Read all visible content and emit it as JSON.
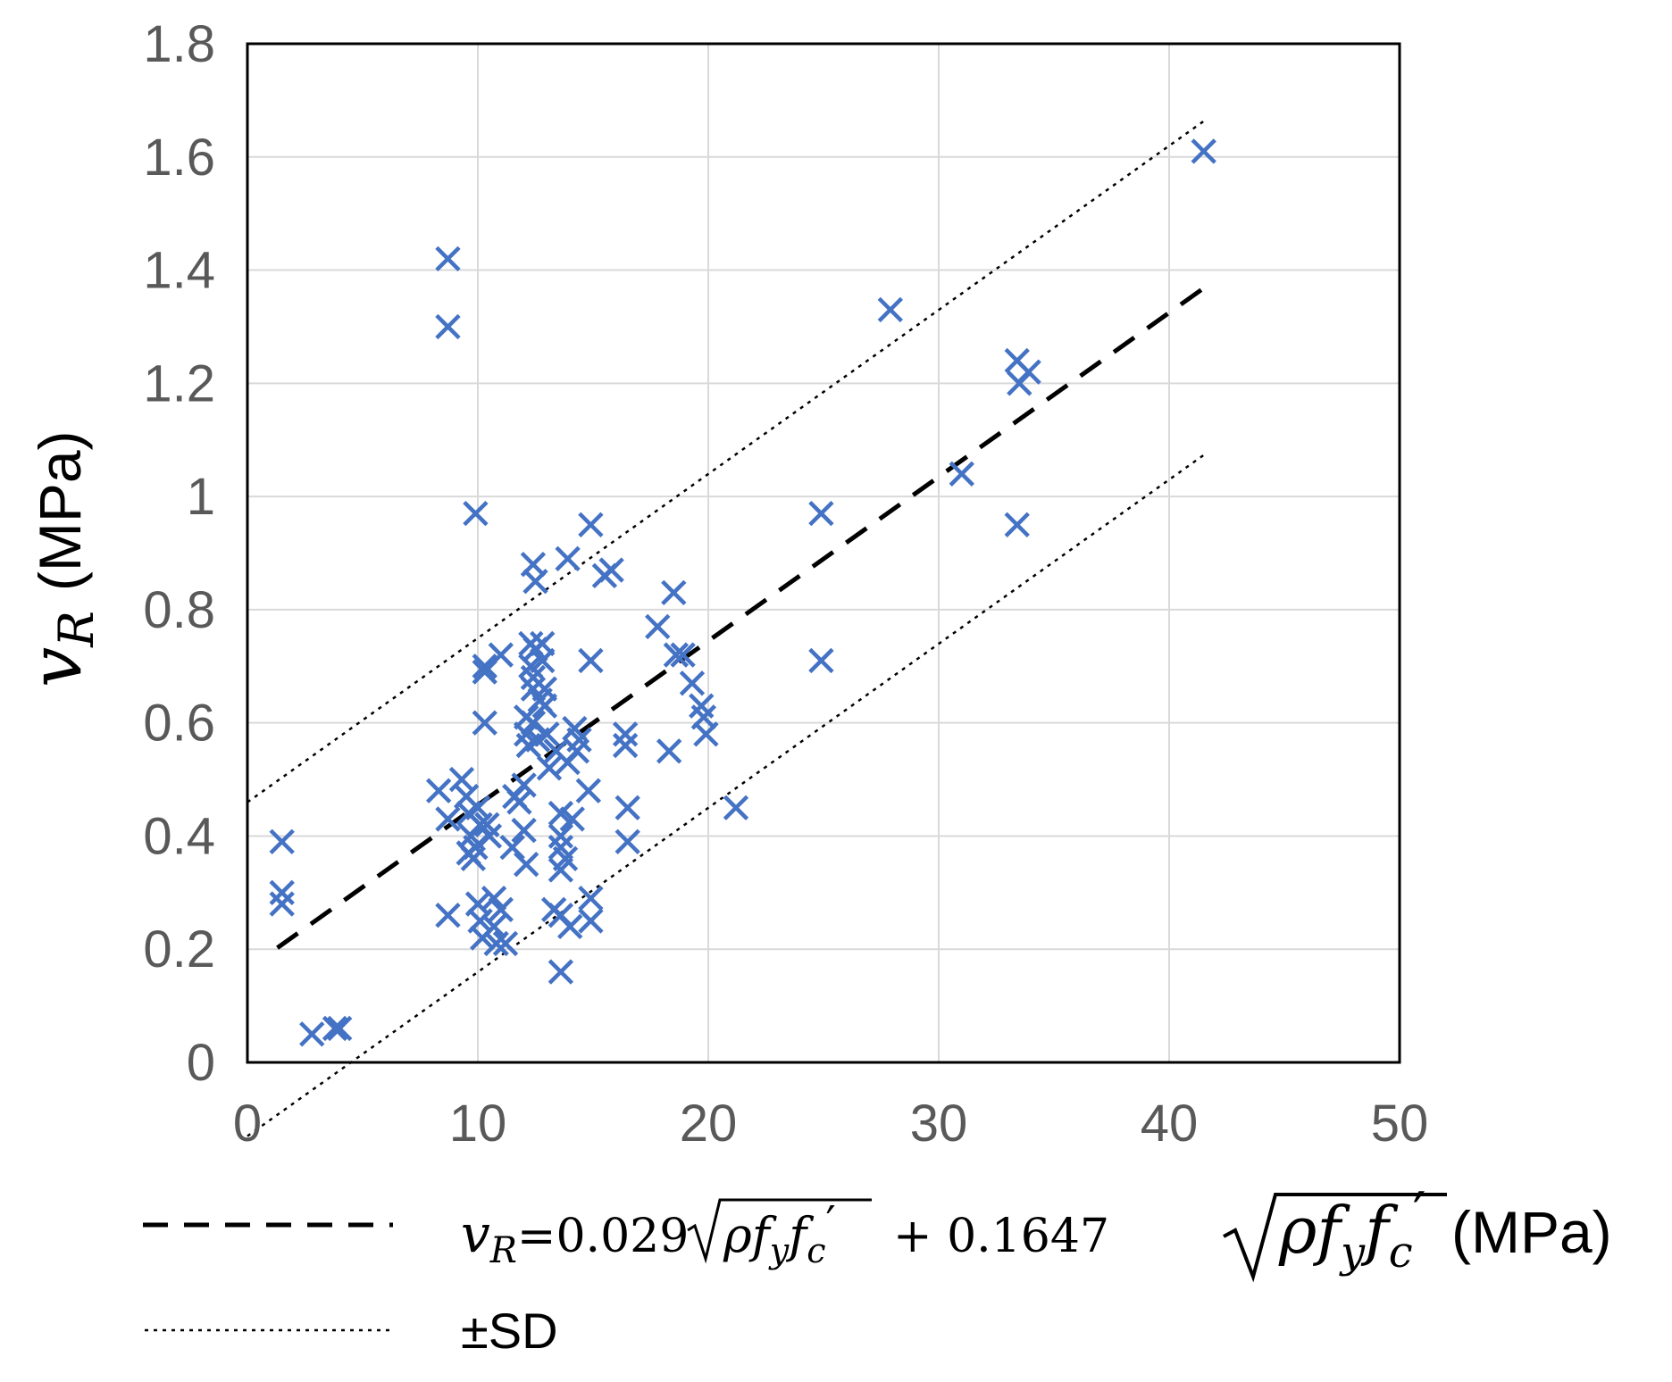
{
  "chart_data": {
    "type": "scatter",
    "xlim": [
      0,
      50
    ],
    "ylim": [
      0,
      1.8
    ],
    "x_ticks": [
      "0",
      "10",
      "20",
      "30",
      "40",
      "50"
    ],
    "y_ticks": [
      "0",
      "0.2",
      "0.4",
      "0.6",
      "0.8",
      "1",
      "1.2",
      "1.4",
      "1.6",
      "1.8"
    ],
    "ylabel": {
      "var": "v",
      "sub": "R",
      "unit": "(MPa)"
    },
    "xlabel": {
      "rho": "ρ",
      "f1": "f",
      "sub1": "y",
      "f2": "f",
      "sub2": "c",
      "prime": "′",
      "unit": "(MPa)"
    },
    "grid": true,
    "marker_color": "#4472C4",
    "fit_line": {
      "slope": 0.029,
      "intercept": 0.1647,
      "x_range": [
        1.3,
        41.5
      ],
      "legend": {
        "v": "v",
        "sub": "R",
        "eq_a": "=0.029",
        "eq_b": "+ 0.1647",
        "rho": "ρ",
        "f1": "f",
        "sub1": "y",
        "f2": "f",
        "sub2": "c",
        "prime": "′"
      }
    },
    "sd_lines": {
      "offset": 0.295,
      "upper_x_range": [
        0,
        41.5
      ],
      "lower_x_range": [
        0,
        41.5
      ],
      "legend": "±SD"
    },
    "points": [
      [
        1.5,
        0.39
      ],
      [
        1.5,
        0.3
      ],
      [
        1.5,
        0.28
      ],
      [
        2.8,
        0.05
      ],
      [
        3.8,
        0.06
      ],
      [
        4.0,
        0.06
      ],
      [
        8.3,
        0.48
      ],
      [
        8.7,
        0.43
      ],
      [
        8.7,
        0.26
      ],
      [
        8.7,
        1.42
      ],
      [
        8.7,
        1.3
      ],
      [
        9.3,
        0.5
      ],
      [
        9.5,
        0.47
      ],
      [
        9.6,
        0.44
      ],
      [
        9.7,
        0.4
      ],
      [
        9.6,
        0.37
      ],
      [
        9.8,
        0.36
      ],
      [
        9.9,
        0.38
      ],
      [
        9.9,
        0.97
      ],
      [
        10.0,
        0.45
      ],
      [
        10.1,
        0.42
      ],
      [
        10.0,
        0.28
      ],
      [
        10.1,
        0.25
      ],
      [
        10.2,
        0.22
      ],
      [
        10.3,
        0.7
      ],
      [
        10.3,
        0.69
      ],
      [
        10.3,
        0.6
      ],
      [
        10.4,
        0.42
      ],
      [
        10.5,
        0.4
      ],
      [
        10.7,
        0.29
      ],
      [
        10.7,
        0.24
      ],
      [
        10.8,
        0.21
      ],
      [
        11.0,
        0.72
      ],
      [
        11.0,
        0.27
      ],
      [
        11.2,
        0.21
      ],
      [
        11.5,
        0.38
      ],
      [
        11.6,
        0.47
      ],
      [
        11.8,
        0.46
      ],
      [
        12.0,
        0.49
      ],
      [
        12.0,
        0.41
      ],
      [
        12.1,
        0.61
      ],
      [
        12.1,
        0.58
      ],
      [
        12.1,
        0.35
      ],
      [
        12.2,
        0.56
      ],
      [
        12.3,
        0.74
      ],
      [
        12.3,
        0.7
      ],
      [
        12.4,
        0.68
      ],
      [
        12.4,
        0.66
      ],
      [
        12.4,
        0.6
      ],
      [
        12.4,
        0.88
      ],
      [
        12.5,
        0.85
      ],
      [
        12.5,
        0.73
      ],
      [
        12.6,
        0.57
      ],
      [
        12.7,
        0.64
      ],
      [
        12.8,
        0.71
      ],
      [
        12.8,
        0.74
      ],
      [
        12.9,
        0.63
      ],
      [
        12.9,
        0.66
      ],
      [
        13.0,
        0.58
      ],
      [
        13.1,
        0.52
      ],
      [
        13.3,
        0.27
      ],
      [
        13.4,
        0.55
      ],
      [
        13.6,
        0.44
      ],
      [
        13.6,
        0.4
      ],
      [
        13.6,
        0.38
      ],
      [
        13.6,
        0.34
      ],
      [
        13.6,
        0.26
      ],
      [
        13.6,
        0.16
      ],
      [
        13.8,
        0.36
      ],
      [
        13.9,
        0.89
      ],
      [
        13.9,
        0.53
      ],
      [
        14.0,
        0.24
      ],
      [
        14.1,
        0.43
      ],
      [
        14.2,
        0.59
      ],
      [
        14.3,
        0.55
      ],
      [
        14.4,
        0.57
      ],
      [
        14.8,
        0.48
      ],
      [
        14.9,
        0.29
      ],
      [
        14.9,
        0.25
      ],
      [
        14.9,
        0.95
      ],
      [
        14.9,
        0.71
      ],
      [
        15.5,
        0.86
      ],
      [
        15.8,
        0.87
      ],
      [
        16.4,
        0.58
      ],
      [
        16.4,
        0.56
      ],
      [
        16.5,
        0.45
      ],
      [
        16.5,
        0.39
      ],
      [
        17.8,
        0.77
      ],
      [
        18.3,
        0.55
      ],
      [
        18.5,
        0.83
      ],
      [
        18.6,
        0.72
      ],
      [
        18.9,
        0.72
      ],
      [
        19.3,
        0.67
      ],
      [
        19.7,
        0.63
      ],
      [
        19.8,
        0.61
      ],
      [
        19.9,
        0.58
      ],
      [
        21.2,
        0.45
      ],
      [
        24.9,
        0.97
      ],
      [
        24.9,
        0.71
      ],
      [
        27.9,
        1.33
      ],
      [
        31.0,
        1.04
      ],
      [
        33.4,
        1.24
      ],
      [
        33.5,
        1.2
      ],
      [
        33.4,
        0.95
      ],
      [
        33.9,
        1.22
      ],
      [
        41.5,
        1.61
      ]
    ]
  }
}
